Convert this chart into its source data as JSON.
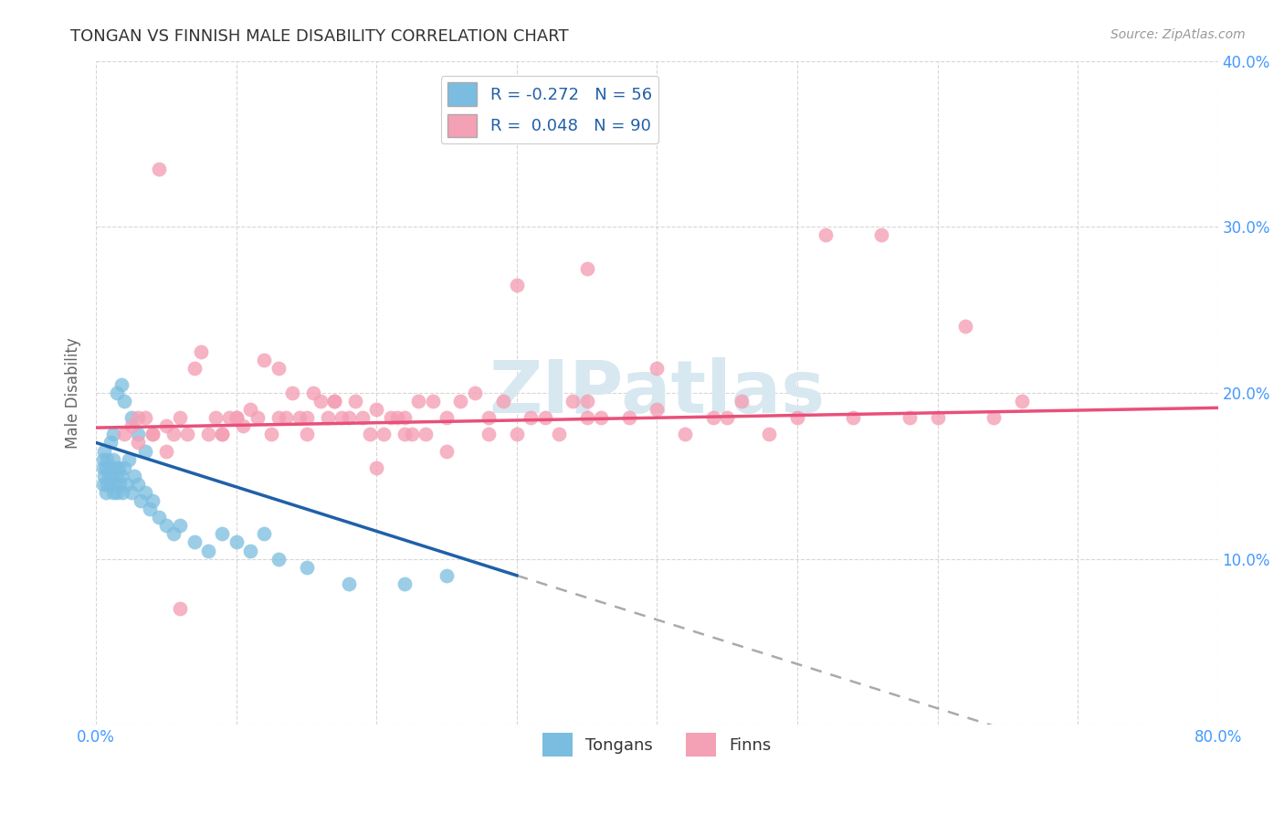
{
  "title": "TONGAN VS FINNISH MALE DISABILITY CORRELATION CHART",
  "source": "Source: ZipAtlas.com",
  "ylabel": "Male Disability",
  "tongan_color": "#7bbde0",
  "finn_color": "#f4a0b5",
  "tongan_line_color": "#2060a8",
  "finn_line_color": "#e8507a",
  "background_color": "#ffffff",
  "grid_color": "#cccccc",
  "xlim": [
    0.0,
    0.8
  ],
  "ylim": [
    0.0,
    0.4
  ],
  "xticks": [
    0.0,
    0.1,
    0.2,
    0.3,
    0.4,
    0.5,
    0.6,
    0.7,
    0.8
  ],
  "yticks": [
    0.0,
    0.1,
    0.2,
    0.3,
    0.4
  ],
  "tongan_x": [
    0.005,
    0.005,
    0.005,
    0.006,
    0.006,
    0.007,
    0.007,
    0.008,
    0.008,
    0.009,
    0.01,
    0.01,
    0.011,
    0.012,
    0.012,
    0.013,
    0.014,
    0.015,
    0.015,
    0.016,
    0.017,
    0.018,
    0.019,
    0.02,
    0.022,
    0.023,
    0.025,
    0.027,
    0.03,
    0.032,
    0.035,
    0.038,
    0.04,
    0.045,
    0.05,
    0.055,
    0.06,
    0.07,
    0.08,
    0.09,
    0.1,
    0.11,
    0.12,
    0.13,
    0.15,
    0.18,
    0.22,
    0.25,
    0.01,
    0.012,
    0.015,
    0.018,
    0.02,
    0.025,
    0.03,
    0.035
  ],
  "tongan_y": [
    0.155,
    0.145,
    0.16,
    0.15,
    0.165,
    0.14,
    0.155,
    0.145,
    0.16,
    0.15,
    0.145,
    0.155,
    0.15,
    0.14,
    0.16,
    0.145,
    0.155,
    0.15,
    0.14,
    0.155,
    0.145,
    0.15,
    0.14,
    0.155,
    0.145,
    0.16,
    0.14,
    0.15,
    0.145,
    0.135,
    0.14,
    0.13,
    0.135,
    0.125,
    0.12,
    0.115,
    0.12,
    0.11,
    0.105,
    0.115,
    0.11,
    0.105,
    0.115,
    0.1,
    0.095,
    0.085,
    0.085,
    0.09,
    0.17,
    0.175,
    0.2,
    0.205,
    0.195,
    0.185,
    0.175,
    0.165
  ],
  "finn_x": [
    0.02,
    0.025,
    0.03,
    0.035,
    0.04,
    0.045,
    0.05,
    0.055,
    0.06,
    0.065,
    0.07,
    0.075,
    0.08,
    0.085,
    0.09,
    0.095,
    0.1,
    0.105,
    0.11,
    0.115,
    0.12,
    0.125,
    0.13,
    0.135,
    0.14,
    0.145,
    0.15,
    0.155,
    0.16,
    0.165,
    0.17,
    0.175,
    0.18,
    0.185,
    0.19,
    0.195,
    0.2,
    0.205,
    0.21,
    0.215,
    0.22,
    0.225,
    0.23,
    0.235,
    0.24,
    0.25,
    0.26,
    0.27,
    0.28,
    0.29,
    0.3,
    0.31,
    0.32,
    0.33,
    0.34,
    0.35,
    0.36,
    0.38,
    0.4,
    0.42,
    0.44,
    0.46,
    0.48,
    0.5,
    0.52,
    0.54,
    0.56,
    0.58,
    0.6,
    0.62,
    0.64,
    0.66,
    0.35,
    0.3,
    0.25,
    0.2,
    0.15,
    0.1,
    0.05,
    0.4,
    0.45,
    0.35,
    0.28,
    0.22,
    0.17,
    0.13,
    0.09,
    0.06,
    0.04,
    0.03
  ],
  "finn_y": [
    0.175,
    0.18,
    0.17,
    0.185,
    0.175,
    0.335,
    0.18,
    0.175,
    0.185,
    0.175,
    0.215,
    0.225,
    0.175,
    0.185,
    0.175,
    0.185,
    0.185,
    0.18,
    0.19,
    0.185,
    0.22,
    0.175,
    0.215,
    0.185,
    0.2,
    0.185,
    0.185,
    0.2,
    0.195,
    0.185,
    0.195,
    0.185,
    0.185,
    0.195,
    0.185,
    0.175,
    0.19,
    0.175,
    0.185,
    0.185,
    0.185,
    0.175,
    0.195,
    0.175,
    0.195,
    0.185,
    0.195,
    0.2,
    0.175,
    0.195,
    0.175,
    0.185,
    0.185,
    0.175,
    0.195,
    0.185,
    0.185,
    0.185,
    0.19,
    0.175,
    0.185,
    0.195,
    0.175,
    0.185,
    0.295,
    0.185,
    0.295,
    0.185,
    0.185,
    0.24,
    0.185,
    0.195,
    0.275,
    0.265,
    0.165,
    0.155,
    0.175,
    0.185,
    0.165,
    0.215,
    0.185,
    0.195,
    0.185,
    0.175,
    0.195,
    0.185,
    0.175,
    0.07,
    0.175,
    0.185
  ],
  "watermark_text": "ZIPatlas",
  "watermark_color": "#d8e8f0",
  "legend_text_color": "#2060a8"
}
